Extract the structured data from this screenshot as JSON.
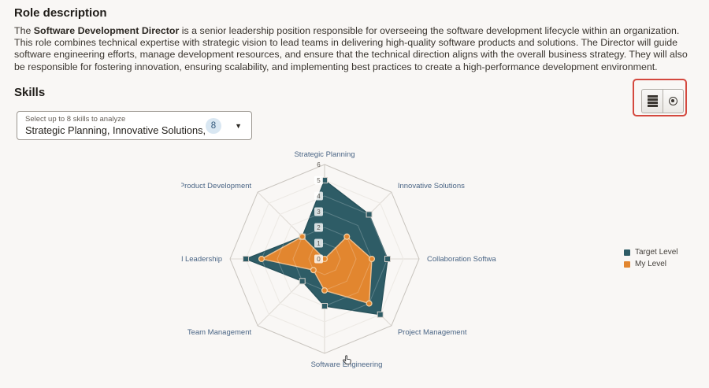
{
  "role_description": {
    "heading": "Role description",
    "intro_prefix": "The ",
    "role_name": "Software Development Director",
    "description_rest": " is a senior leadership position responsible for overseeing the software development lifecycle within an organization. This role combines technical expertise with strategic vision to lead teams in delivering high-quality software products and solutions. The Director will guide software engineering efforts, manage development resources, and ensure that the technical direction aligns with the overall business strategy. They will also be responsible for fostering innovation, ensuring scalability, and implementing best practices to create a high-performance development environment."
  },
  "skills": {
    "heading": "Skills",
    "selector": {
      "label": "Select up to 8 skills to analyze",
      "value": "Strategic Planning, Innovative Solutions, Collabo",
      "count_badge": "8",
      "caret_glyph": "▼"
    },
    "view_toggle": {
      "list_icon": "list-icon",
      "radar_icon": "bullseye-icon",
      "highlight_color": "#d4483e"
    }
  },
  "chart_data": {
    "type": "radar",
    "categories": [
      "Strategic Planning",
      "Innovative Solutions",
      "Collaboration Software",
      "Project Management",
      "Software Engineering",
      "Team Management",
      "Technical Leadership",
      "Product Development"
    ],
    "series": [
      {
        "name": "Target Level",
        "color": "#2e5c66",
        "stroke": "#27515a",
        "marker": "square",
        "marker_stroke": "#d2cec9",
        "values": [
          5,
          4,
          4,
          5,
          3,
          2,
          5,
          2
        ]
      },
      {
        "name": "My Level",
        "color": "#e2862f",
        "stroke": "#f0bd8a",
        "marker": "circle",
        "marker_stroke": "#f3cfa2",
        "values": [
          0,
          2,
          3,
          4,
          2,
          1,
          4,
          2
        ]
      }
    ],
    "scale": {
      "min": 0,
      "max": 6,
      "ticks": [
        0,
        1,
        2,
        3,
        4,
        5,
        6
      ]
    },
    "legend_position": "right",
    "grid": true,
    "grid_color": "#ddd9d3",
    "outer_ring_color": "#c8c4be",
    "tick_color": "#5b5751",
    "axis_label_color": "#4a6585"
  }
}
